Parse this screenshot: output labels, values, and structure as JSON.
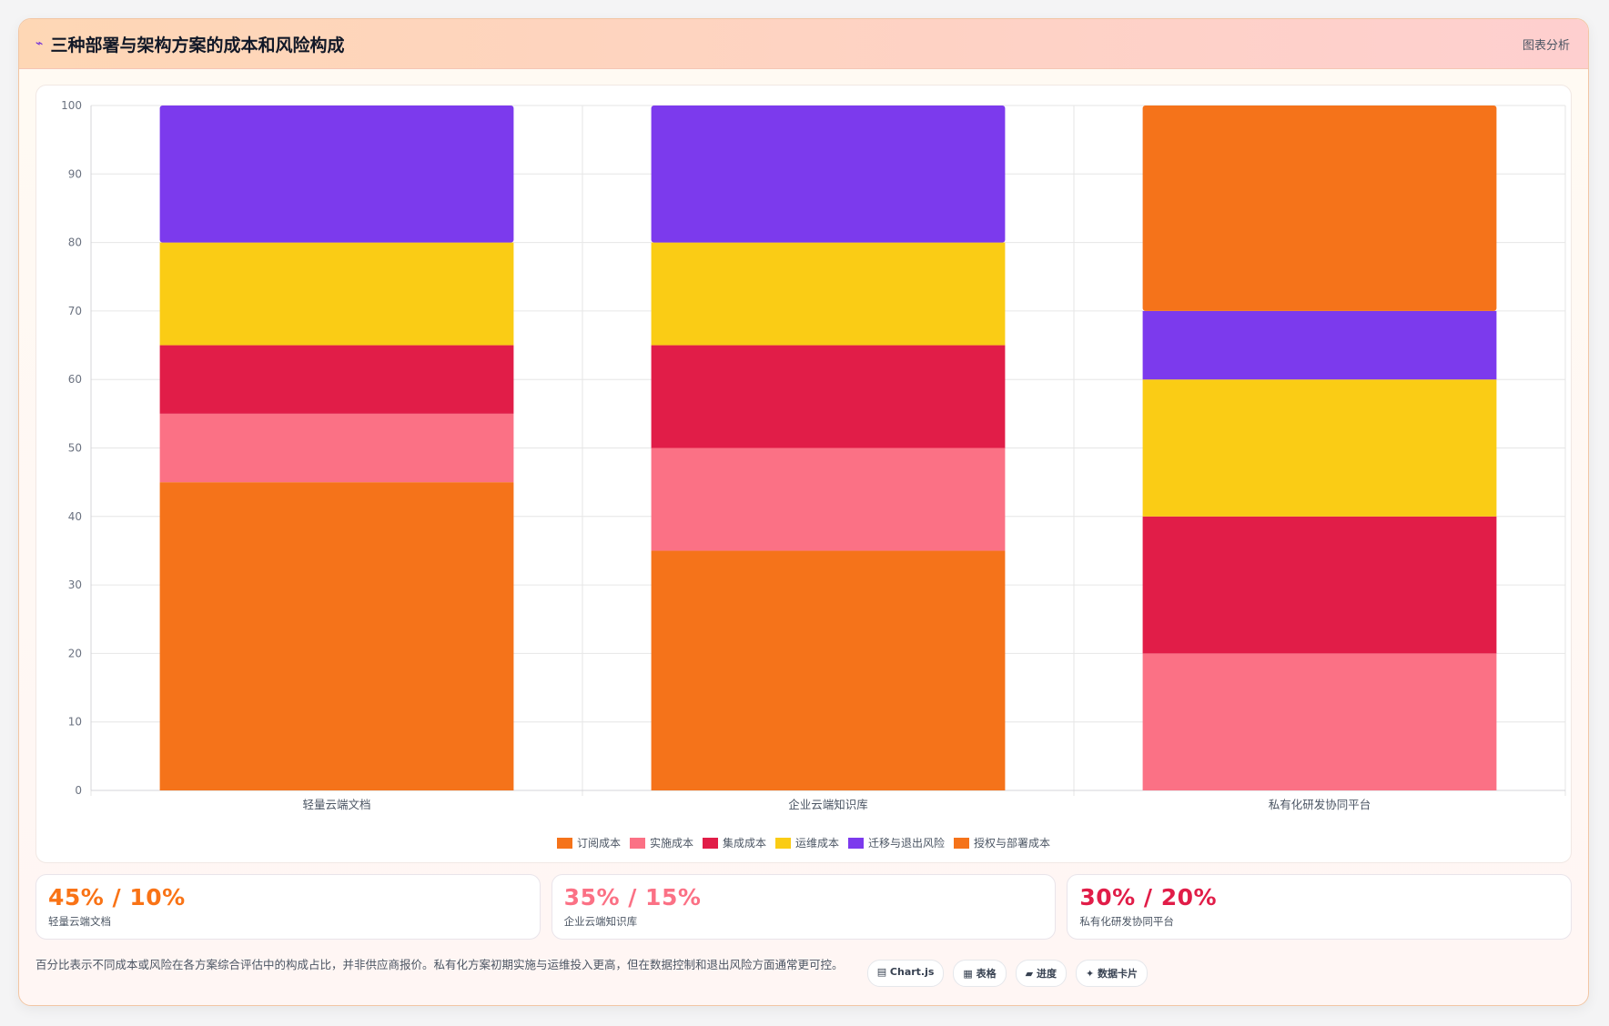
{
  "header": {
    "title_icon": "chart-icon",
    "title": "三种部署与架构方案的成本和风险构成",
    "analysis_label": "图表分析"
  },
  "chart_data": {
    "type": "bar",
    "stacked": true,
    "categories": [
      "轻量云端文档",
      "企业云端知识库",
      "私有化研发协同平台"
    ],
    "series": [
      {
        "name": "订阅成本",
        "color": "#f5731a",
        "values": [
          45,
          35,
          0
        ]
      },
      {
        "name": "实施成本",
        "color": "#fb7185",
        "values": [
          10,
          15,
          20
        ]
      },
      {
        "name": "集成成本",
        "color": "#e11d48",
        "values": [
          10,
          15,
          20
        ]
      },
      {
        "name": "运维成本",
        "color": "#facc15",
        "values": [
          15,
          15,
          20
        ]
      },
      {
        "name": "迁移与退出风险",
        "color": "#7c3aed",
        "values": [
          20,
          20,
          10
        ]
      },
      {
        "name": "授权与部署成本",
        "color": "#f5731a",
        "values": [
          0,
          0,
          30
        ]
      }
    ],
    "ylim": [
      0,
      100
    ],
    "yticks": [
      0,
      10,
      20,
      30,
      40,
      50,
      60,
      70,
      80,
      90,
      100
    ],
    "grid": true,
    "legend_position": "bottom"
  },
  "stats": [
    {
      "value": "45% / 10%",
      "label": "轻量云端文档",
      "color": "#f97316"
    },
    {
      "value": "35% / 15%",
      "label": "企业云端知识库",
      "color": "#fb7185"
    },
    {
      "value": "30% / 20%",
      "label": "私有化研发协同平台",
      "color": "#e11d48"
    }
  ],
  "footer": {
    "note": "百分比表示不同成本或风险在各方案综合评估中的构成占比，并非供应商报价。私有化方案初期实施与运维投入更高，但在数据控制和退出风险方面通常更可控。",
    "tags": [
      "▤ Chart.js",
      "▦ 表格",
      "▰ 进度",
      "✦ 数据卡片"
    ]
  }
}
